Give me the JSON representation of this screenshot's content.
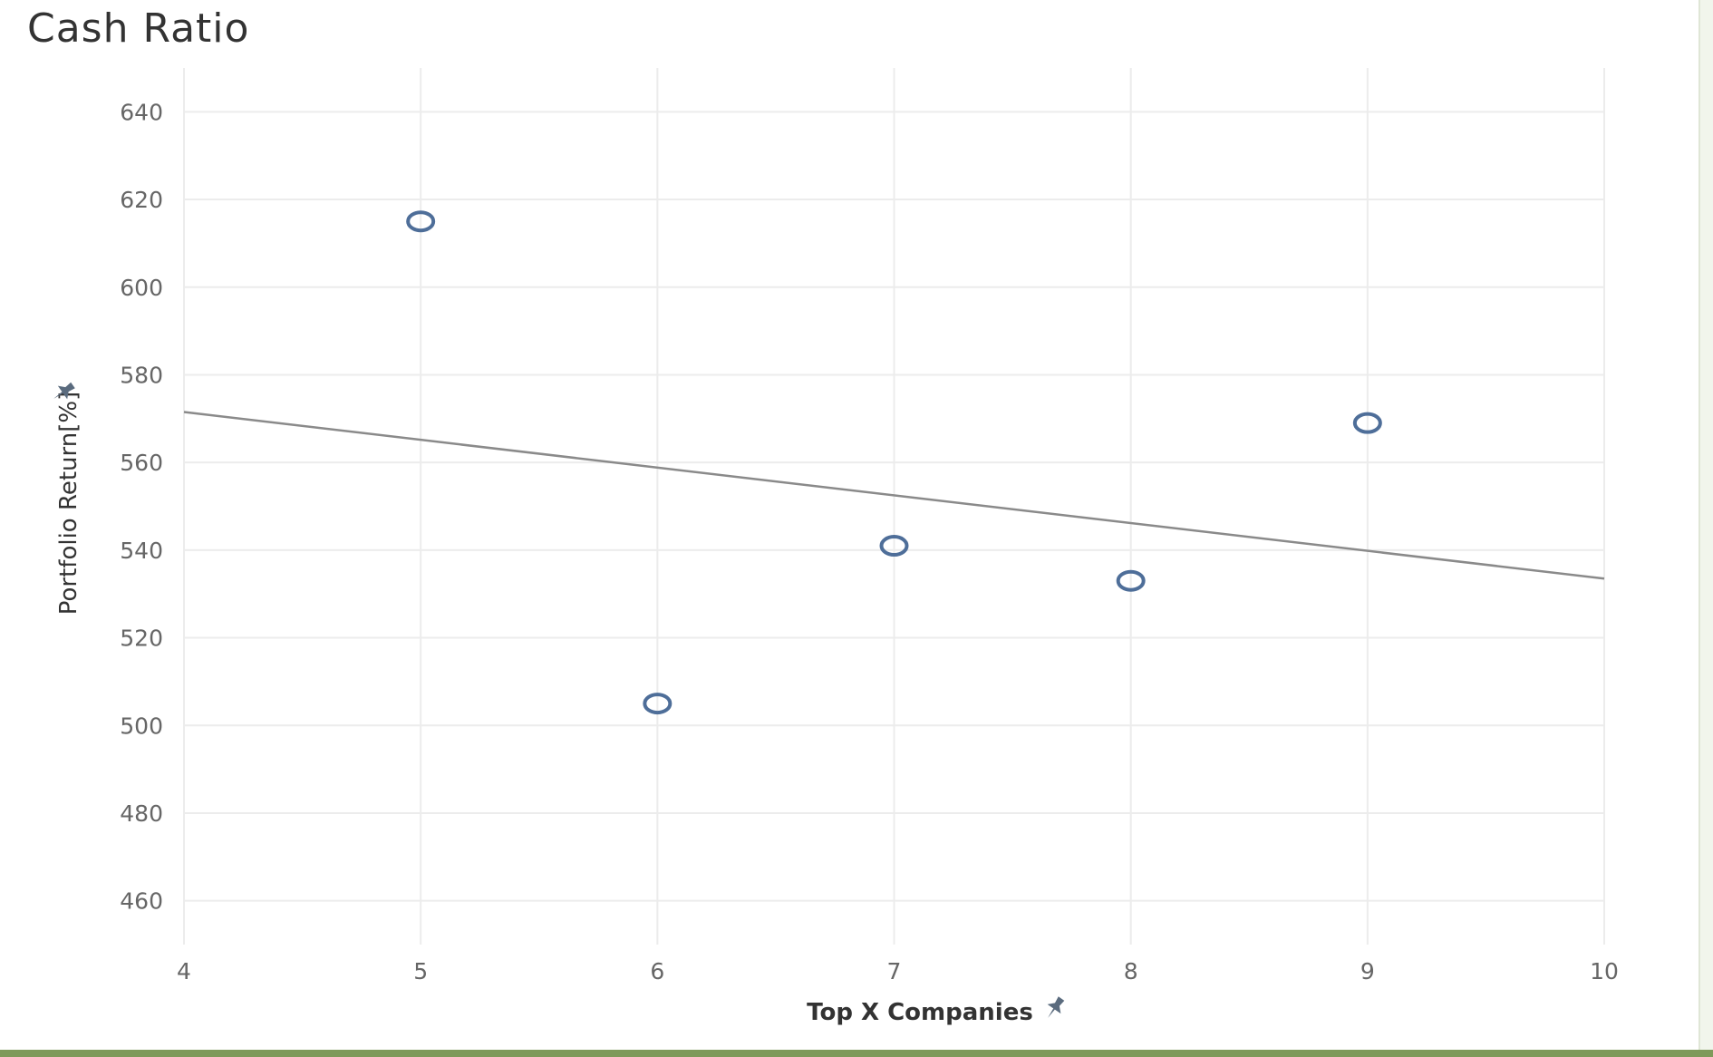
{
  "chart_data": {
    "type": "scatter",
    "title": "Cash Ratio",
    "xlabel": "Top X Companies",
    "ylabel": "Portfolio Return[%]",
    "xlim": [
      4,
      10
    ],
    "ylim": [
      450,
      650
    ],
    "xticks": [
      4,
      5,
      6,
      7,
      8,
      9,
      10
    ],
    "yticks": [
      460,
      480,
      500,
      520,
      540,
      560,
      580,
      600,
      620,
      640
    ],
    "grid": true,
    "points": [
      {
        "x": 5,
        "y": 615
      },
      {
        "x": 6,
        "y": 505
      },
      {
        "x": 7,
        "y": 541
      },
      {
        "x": 8,
        "y": 533
      },
      {
        "x": 9,
        "y": 569
      }
    ],
    "trend_line": {
      "x": [
        4,
        10
      ],
      "y": [
        571.5,
        533.5
      ]
    },
    "colors": {
      "marker": "#4e6e99",
      "trend": "#8a8a8a",
      "grid": "#ececec"
    }
  },
  "icons": {
    "x_axis_pin": "pin-icon",
    "y_axis_pin": "pin-icon"
  }
}
